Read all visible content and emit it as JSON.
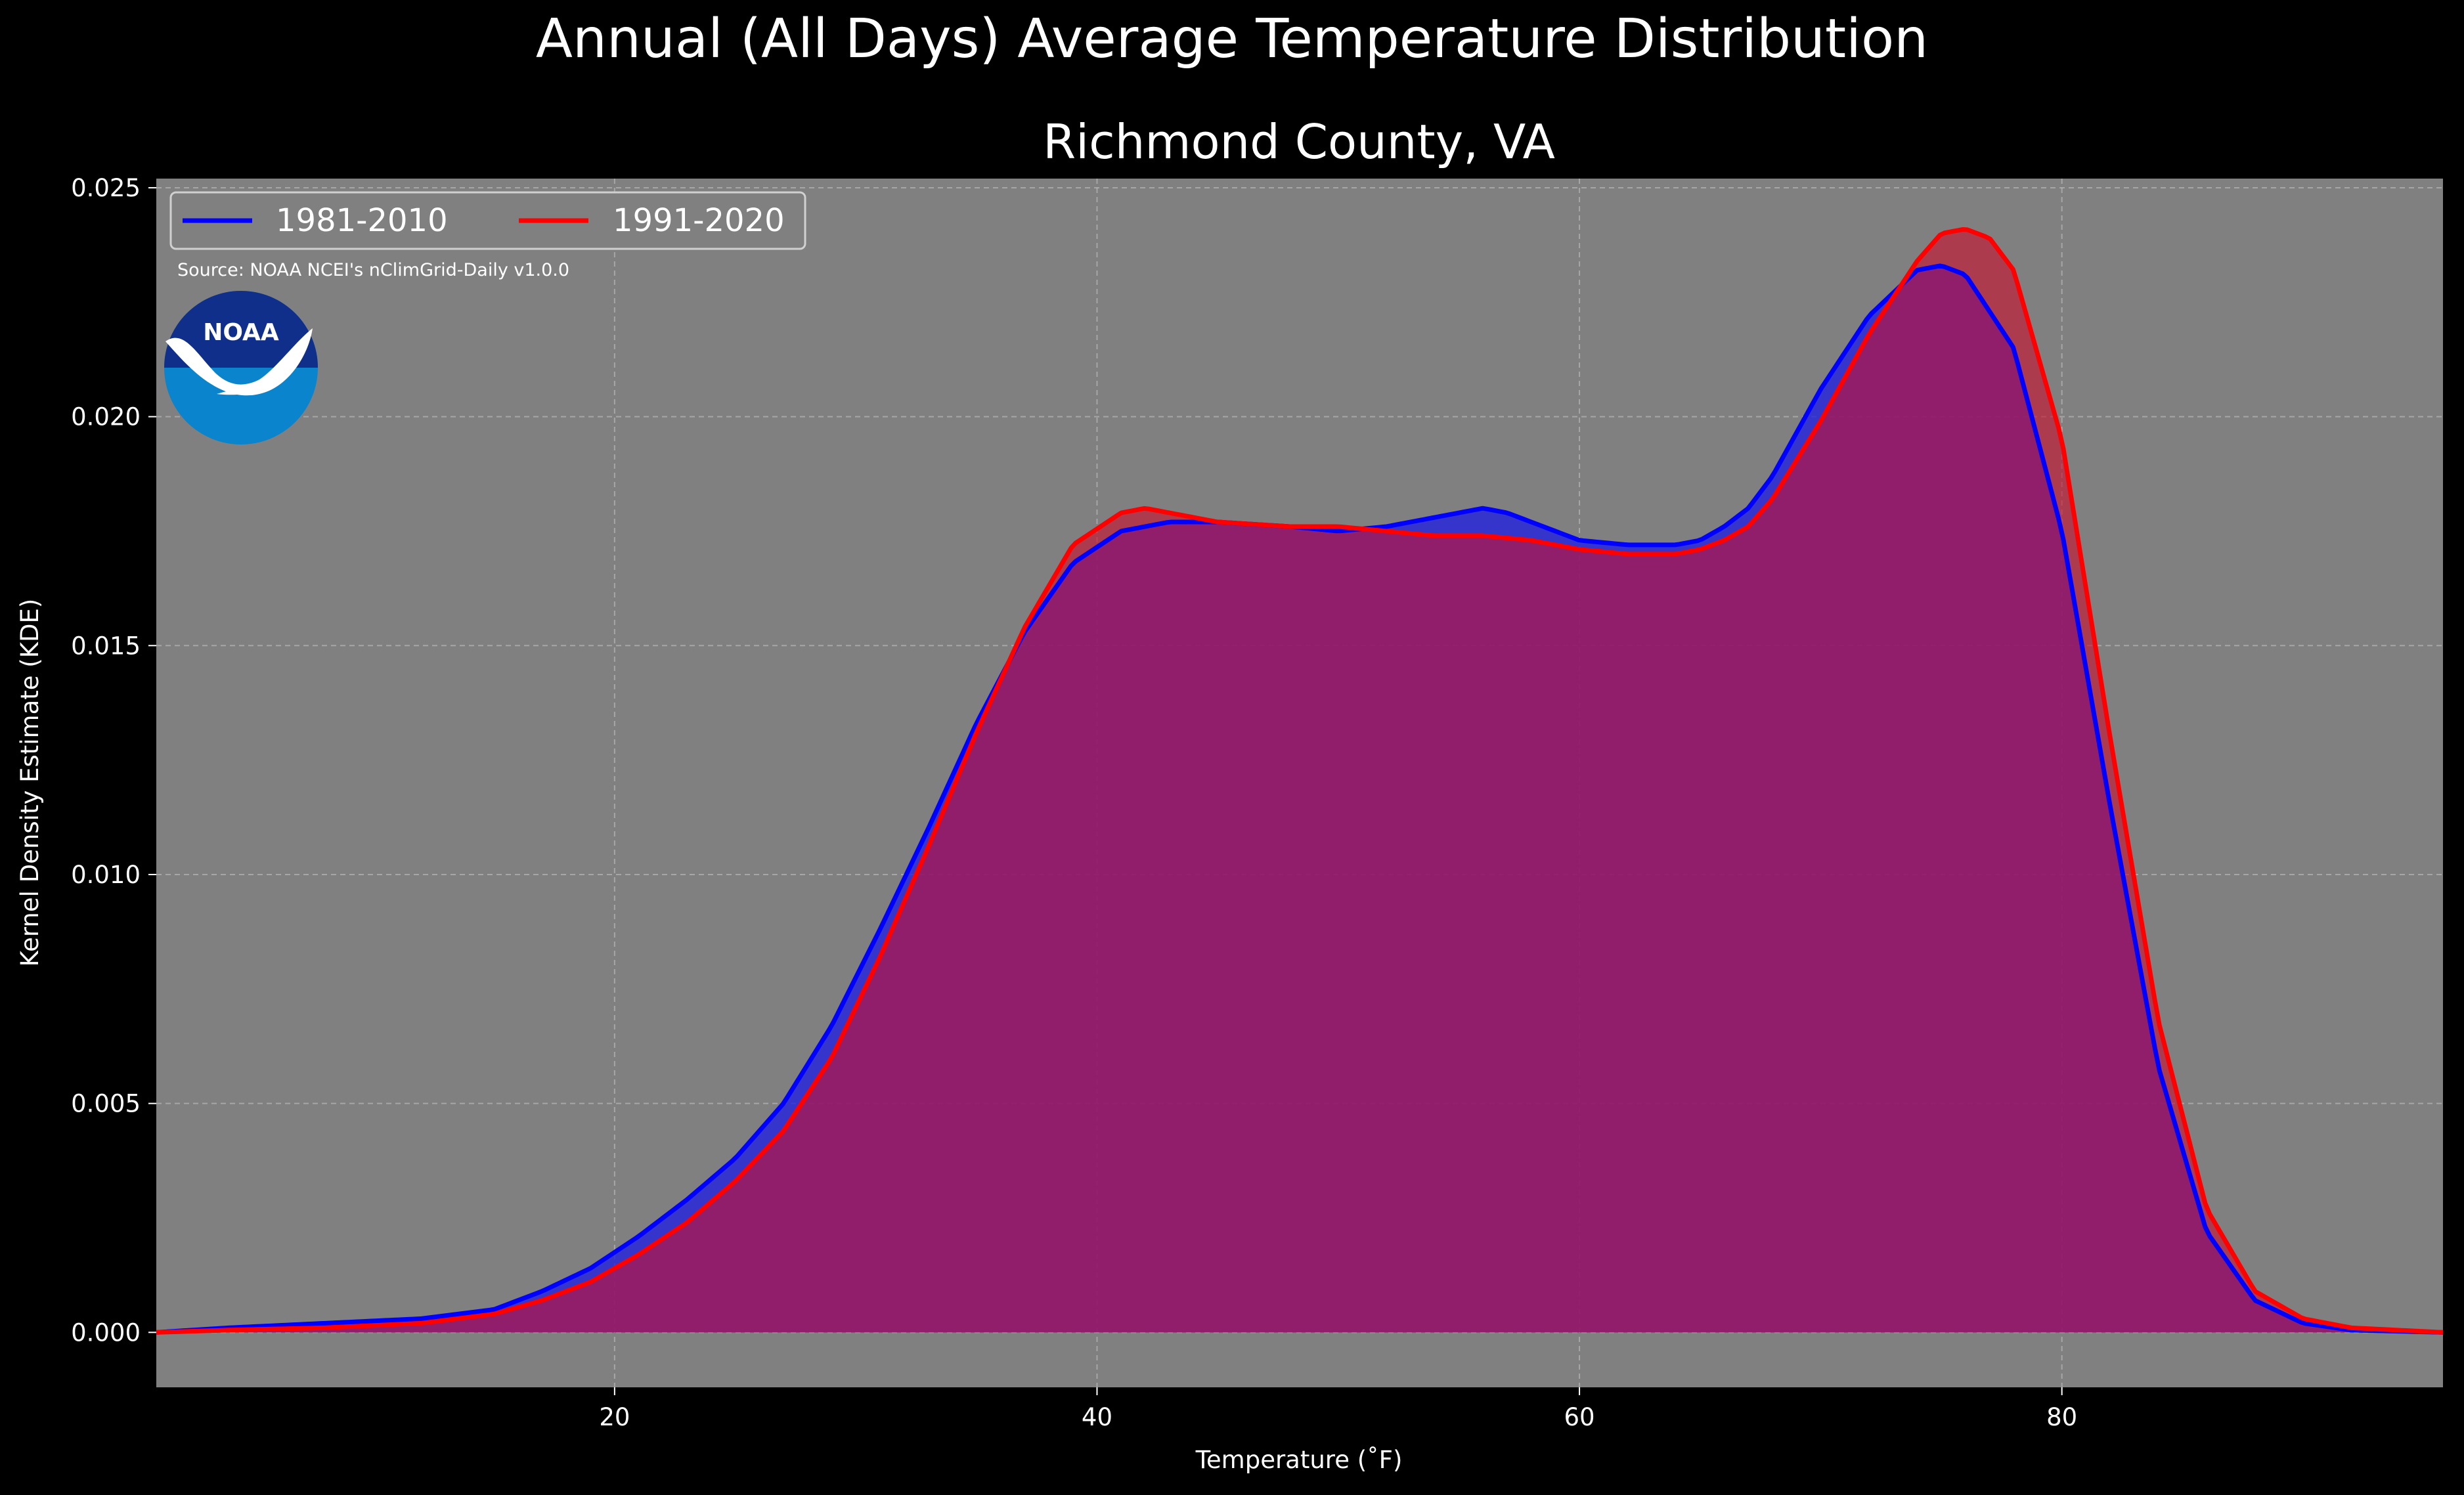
{
  "chart_data": {
    "type": "area",
    "title": "Annual (All Days) Average Temperature Distribution",
    "subtitle": "Richmond County, VA",
    "xlabel": "Temperature ($^\\circ$F)",
    "xlabel_display": "Temperature (˚F)",
    "ylabel": "Kernel Density Estimate (KDE)",
    "source": "Source: NOAA NCEI's nClimGrid-Daily v1.0.0",
    "logo_text": "NOAA",
    "xlim": [
      1,
      95.8
    ],
    "ylim": [
      -0.0012,
      0.0252
    ],
    "xticks": [
      20,
      40,
      60,
      80
    ],
    "yticks": [
      0.0,
      0.005,
      0.01,
      0.015,
      0.02,
      0.025
    ],
    "ytick_labels": [
      "0.000",
      "0.005",
      "0.010",
      "0.015",
      "0.020",
      "0.025"
    ],
    "grid": true,
    "legend_position": "top-left",
    "colors": {
      "background": "#000000",
      "plot_background": "#808080",
      "grid": "#c0c0c0",
      "blue": "#0000ff",
      "red": "#ff0000",
      "overlap_fill": "#9d1e5b"
    },
    "series": [
      {
        "name": "1981-2010",
        "color": "#0000ff",
        "x": [
          1,
          4,
          8,
          12,
          15,
          17,
          19,
          21,
          23,
          25,
          27,
          29,
          31,
          33,
          35,
          37,
          39,
          41,
          43,
          45,
          48,
          50,
          52,
          54,
          56,
          57,
          58,
          60,
          62,
          64,
          65,
          66,
          67,
          68,
          70,
          72,
          74,
          75,
          76,
          78,
          80,
          82,
          84,
          86,
          88,
          90,
          92,
          95.8
        ],
        "values": [
          0.0,
          0.0001,
          0.0002,
          0.0003,
          0.0005,
          0.0009,
          0.0014,
          0.0021,
          0.0029,
          0.0038,
          0.005,
          0.0067,
          0.0088,
          0.011,
          0.0133,
          0.0153,
          0.0168,
          0.0175,
          0.0177,
          0.0177,
          0.0176,
          0.0175,
          0.0176,
          0.0178,
          0.018,
          0.0179,
          0.0177,
          0.0173,
          0.0172,
          0.0172,
          0.0173,
          0.0176,
          0.018,
          0.0187,
          0.0206,
          0.0222,
          0.0232,
          0.0233,
          0.0231,
          0.0215,
          0.0175,
          0.0115,
          0.0058,
          0.0022,
          0.0007,
          0.0002,
          5e-05,
          0.0
        ]
      },
      {
        "name": "1991-2020",
        "color": "#ff0000",
        "x": [
          1,
          4,
          8,
          12,
          15,
          17,
          19,
          21,
          23,
          25,
          27,
          29,
          31,
          33,
          35,
          37,
          39,
          41,
          42,
          43,
          45,
          48,
          50,
          52,
          54,
          56,
          58,
          60,
          62,
          64,
          65,
          66,
          67,
          68,
          70,
          72,
          74,
          75,
          76,
          77,
          78,
          80,
          82,
          84,
          86,
          88,
          90,
          92,
          95.8
        ],
        "values": [
          0.0,
          5e-05,
          0.0001,
          0.0002,
          0.0004,
          0.0007,
          0.0011,
          0.0017,
          0.0024,
          0.0033,
          0.0044,
          0.006,
          0.0082,
          0.0106,
          0.0131,
          0.0154,
          0.0172,
          0.0179,
          0.018,
          0.0179,
          0.0177,
          0.0176,
          0.0176,
          0.0175,
          0.0174,
          0.0174,
          0.0173,
          0.0171,
          0.017,
          0.017,
          0.0171,
          0.0173,
          0.0176,
          0.0182,
          0.0199,
          0.0218,
          0.0234,
          0.024,
          0.0241,
          0.0239,
          0.0232,
          0.0195,
          0.013,
          0.0068,
          0.0027,
          0.0009,
          0.0003,
          0.0001,
          0.0
        ]
      }
    ]
  }
}
